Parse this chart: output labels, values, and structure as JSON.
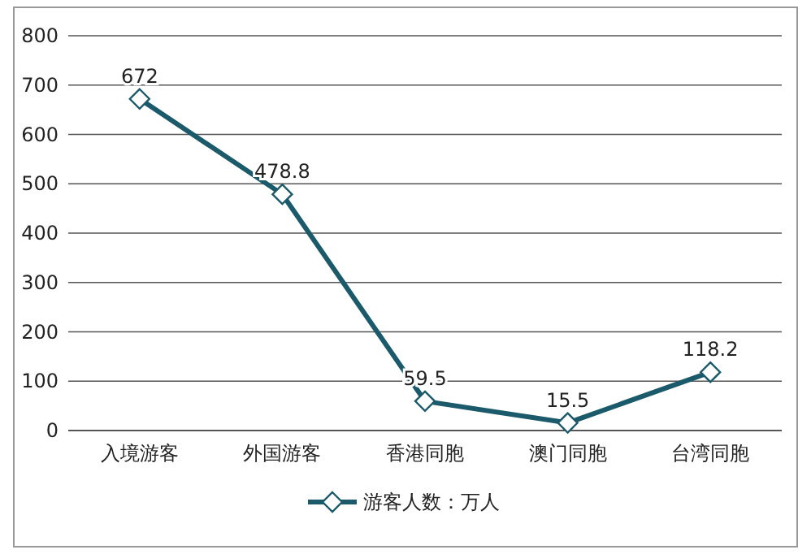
{
  "chart_data": {
    "type": "line",
    "categories": [
      "入境游客",
      "外国游客",
      "香港同胞",
      "澳门同胞",
      "台湾同胞"
    ],
    "series": [
      {
        "name": "游客人数：万人",
        "color": "#1b5a6b",
        "values": [
          672,
          478.8,
          59.5,
          15.5,
          118.2
        ]
      }
    ],
    "ylim": [
      0,
      800
    ],
    "yticks": [
      0,
      100,
      200,
      300,
      400,
      500,
      600,
      700,
      800
    ],
    "grid": "y",
    "marker": "diamond",
    "data_labels": true,
    "legend": "bottom",
    "line_style": "solid"
  }
}
